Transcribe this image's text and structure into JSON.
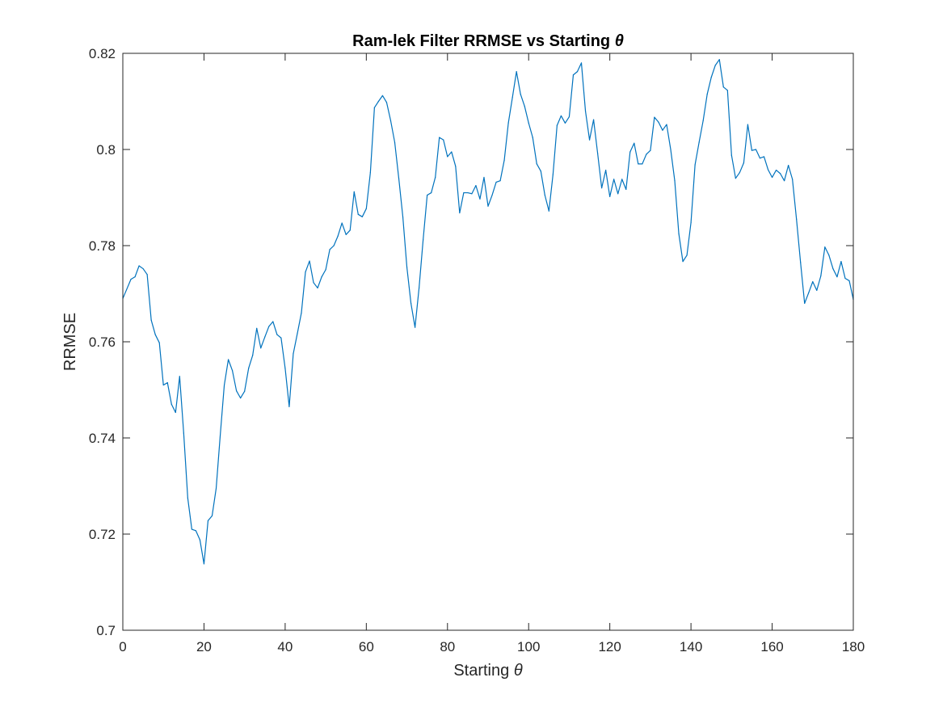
{
  "chart_data": {
    "type": "line",
    "title": "Ram-lek Filter RRMSE vs Starting",
    "title_symbol": "θ",
    "xlabel": "Starting",
    "xlabel_symbol": "θ",
    "ylabel": "RRMSE",
    "xlim": [
      0,
      180
    ],
    "ylim": [
      0.7,
      0.82
    ],
    "xticks": [
      0,
      20,
      40,
      60,
      80,
      100,
      120,
      140,
      160,
      180
    ],
    "xtick_labels": [
      "0",
      "20",
      "40",
      "60",
      "80",
      "100",
      "120",
      "140",
      "160",
      "180"
    ],
    "yticks": [
      0.7,
      0.72,
      0.74,
      0.76,
      0.78,
      0.8,
      0.82
    ],
    "ytick_labels": [
      "0.7",
      "0.72",
      "0.74",
      "0.76",
      "0.78",
      "0.8",
      "0.82"
    ],
    "grid": false,
    "box": true,
    "series": [
      {
        "color": "#0072bd",
        "x": [
          0,
          1,
          2,
          3,
          4,
          5,
          6,
          7,
          8,
          9,
          10,
          11,
          12,
          13,
          14,
          15,
          16,
          17,
          18,
          19,
          20,
          21,
          22,
          23,
          24,
          25,
          26,
          27,
          28,
          29,
          30,
          31,
          32,
          33,
          34,
          35,
          36,
          37,
          38,
          39,
          40,
          41,
          42,
          43,
          44,
          45,
          46,
          47,
          48,
          49,
          50,
          51,
          52,
          53,
          54,
          55,
          56,
          57,
          58,
          59,
          60,
          61,
          62,
          63,
          64,
          65,
          66,
          67,
          68,
          69,
          70,
          71,
          72,
          73,
          74,
          75,
          76,
          77,
          78,
          79,
          80,
          81,
          82,
          83,
          84,
          85,
          86,
          87,
          88,
          89,
          90,
          91,
          92,
          93,
          94,
          95,
          96,
          97,
          98,
          99,
          100,
          101,
          102,
          103,
          104,
          105,
          106,
          107,
          108,
          109,
          110,
          111,
          112,
          113,
          114,
          115,
          116,
          117,
          118,
          119,
          120,
          121,
          122,
          123,
          124,
          125,
          126,
          127,
          128,
          129,
          130,
          131,
          132,
          133,
          134,
          135,
          136,
          137,
          138,
          139,
          140,
          141,
          142,
          143,
          144,
          145,
          146,
          147,
          148,
          149,
          150,
          151,
          152,
          153,
          154,
          155,
          156,
          157,
          158,
          159,
          160,
          161,
          162,
          163,
          164,
          165,
          166,
          167,
          168,
          169,
          170,
          171,
          172,
          173,
          174,
          175,
          176,
          177,
          178,
          179,
          180
        ],
        "y": [
          0.769,
          0.771,
          0.773,
          0.7735,
          0.7758,
          0.7752,
          0.774,
          0.7645,
          0.7615,
          0.7598,
          0.751,
          0.7515,
          0.747,
          0.7453,
          0.7528,
          0.741,
          0.7275,
          0.721,
          0.7207,
          0.7188,
          0.7138,
          0.7228,
          0.7238,
          0.7295,
          0.7405,
          0.751,
          0.7563,
          0.754,
          0.7498,
          0.7483,
          0.7497,
          0.7545,
          0.7572,
          0.7628,
          0.7587,
          0.761,
          0.7632,
          0.7642,
          0.7615,
          0.7608,
          0.7545,
          0.7465,
          0.7575,
          0.7617,
          0.766,
          0.7745,
          0.7768,
          0.7723,
          0.7712,
          0.7735,
          0.775,
          0.7792,
          0.78,
          0.782,
          0.7847,
          0.7823,
          0.7832,
          0.7912,
          0.7865,
          0.786,
          0.7877,
          0.7952,
          0.8087,
          0.81,
          0.8112,
          0.8098,
          0.806,
          0.8015,
          0.794,
          0.786,
          0.7755,
          0.768,
          0.763,
          0.7712,
          0.7812,
          0.7905,
          0.791,
          0.7942,
          0.8025,
          0.802,
          0.7985,
          0.7995,
          0.7965,
          0.7868,
          0.791,
          0.791,
          0.7908,
          0.7925,
          0.7897,
          0.7942,
          0.7882,
          0.7905,
          0.7932,
          0.7935,
          0.7978,
          0.8055,
          0.8108,
          0.8162,
          0.8115,
          0.809,
          0.8055,
          0.8025,
          0.797,
          0.7955,
          0.7905,
          0.7872,
          0.7948,
          0.805,
          0.807,
          0.8055,
          0.8068,
          0.8155,
          0.8162,
          0.818,
          0.808,
          0.802,
          0.8062,
          0.7992,
          0.792,
          0.7957,
          0.7902,
          0.7938,
          0.7908,
          0.7938,
          0.7917,
          0.7995,
          0.8013,
          0.797,
          0.797,
          0.799,
          0.7998,
          0.8067,
          0.8057,
          0.804,
          0.8052,
          0.8,
          0.7935,
          0.7825,
          0.7767,
          0.778,
          0.7848,
          0.7968,
          0.8015,
          0.806,
          0.8115,
          0.815,
          0.8175,
          0.8187,
          0.813,
          0.8123,
          0.7988,
          0.794,
          0.7952,
          0.7972,
          0.8052,
          0.7998,
          0.8,
          0.7982,
          0.7985,
          0.7958,
          0.7942,
          0.7957,
          0.795,
          0.7935,
          0.7967,
          0.7938,
          0.7855,
          0.7765,
          0.768,
          0.7702,
          0.7725,
          0.7707,
          0.7737,
          0.7797,
          0.778,
          0.7752,
          0.7735,
          0.7767,
          0.7732,
          0.7727,
          0.7688
        ]
      }
    ]
  }
}
